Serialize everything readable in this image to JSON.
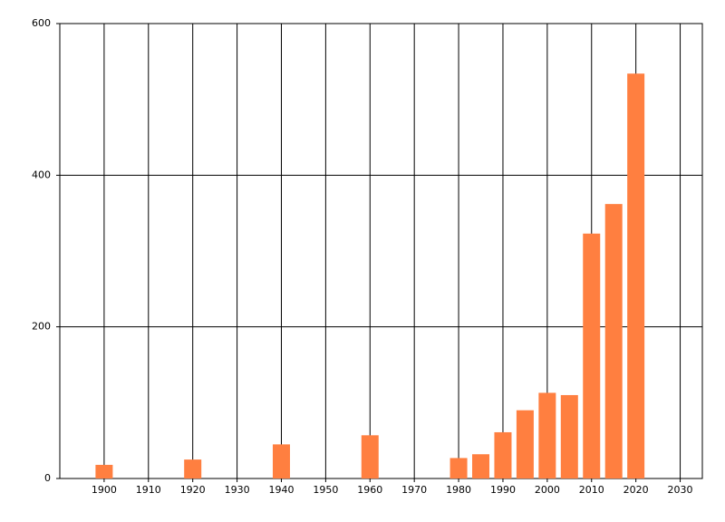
{
  "chart_data": {
    "type": "bar",
    "x": [
      1900,
      1920,
      1940,
      1960,
      1980,
      1985,
      1990,
      1995,
      2000,
      2005,
      2010,
      2015,
      2020
    ],
    "values": [
      18,
      25,
      45,
      57,
      27,
      32,
      61,
      90,
      113,
      110,
      323,
      362,
      534
    ],
    "color": "#ff7f40",
    "xlim": [
      1890,
      2035
    ],
    "xticks": [
      1900,
      1910,
      1920,
      1930,
      1940,
      1950,
      1960,
      1970,
      1980,
      1990,
      2000,
      2010,
      2020,
      2030
    ],
    "ylim": [
      0,
      600
    ],
    "yticks": [
      0,
      200,
      400,
      600
    ],
    "grid": true
  }
}
